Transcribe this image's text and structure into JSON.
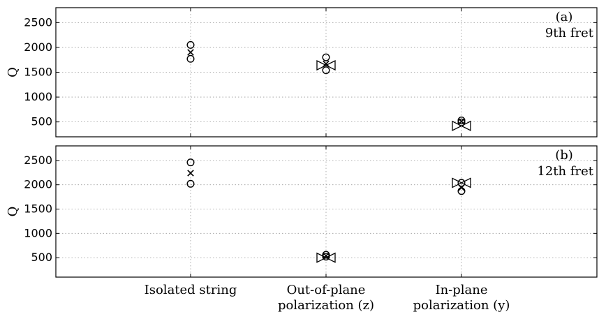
{
  "chart_data": [
    {
      "type": "scatter",
      "panel_label": "(a)",
      "panel_note": "9th fret",
      "ylabel": "Q",
      "xlabel": "",
      "categories": [
        "Isolated string",
        "Out-of-plane polarization (z)",
        "In-plane polarization (y)"
      ],
      "yticks": [
        500,
        1000,
        1500,
        2000,
        2500
      ],
      "ylim": [
        200,
        2800
      ],
      "grid": true,
      "series": [
        {
          "marker": "circle",
          "points": [
            [
              1,
              2050
            ],
            [
              1,
              1770
            ],
            [
              2,
              1800
            ],
            [
              2,
              1540
            ],
            [
              3,
              530
            ],
            [
              3,
              490
            ]
          ]
        },
        {
          "marker": "x",
          "points": [
            [
              1,
              1900
            ],
            [
              2,
              1670
            ],
            [
              3,
              510
            ]
          ]
        },
        {
          "marker": "bowtie",
          "points": [
            [
              2,
              1640
            ],
            [
              3,
              420
            ]
          ]
        }
      ]
    },
    {
      "type": "scatter",
      "panel_label": "(b)",
      "panel_note": "12th fret",
      "ylabel": "Q",
      "xlabel": "",
      "categories": [
        "Isolated string",
        "Out-of-plane polarization (z)",
        "In-plane polarization (y)"
      ],
      "category_lines": [
        [
          "Isolated string"
        ],
        [
          "Out-of-plane",
          "polarization (z)"
        ],
        [
          "In-plane",
          "polarization (y)"
        ]
      ],
      "yticks": [
        500,
        1000,
        1500,
        2000,
        2500
      ],
      "ylim": [
        100,
        2800
      ],
      "grid": true,
      "series": [
        {
          "marker": "circle",
          "points": [
            [
              1,
              2460
            ],
            [
              1,
              2020
            ],
            [
              2,
              560
            ],
            [
              2,
              520
            ],
            [
              3,
              2040
            ],
            [
              3,
              1870
            ]
          ]
        },
        {
          "marker": "x",
          "points": [
            [
              1,
              2240
            ],
            [
              2,
              540
            ],
            [
              3,
              1940
            ]
          ]
        },
        {
          "marker": "bowtie",
          "points": [
            [
              2,
              500
            ],
            [
              3,
              2040
            ]
          ]
        }
      ]
    }
  ]
}
